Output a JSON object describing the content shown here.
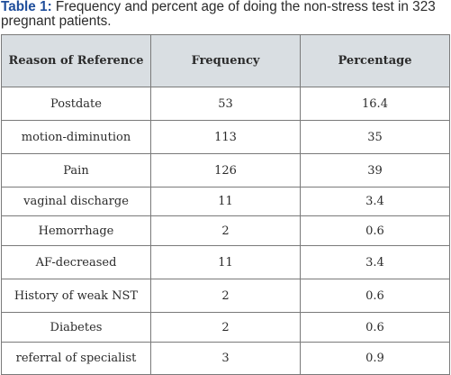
{
  "caption": {
    "label": "Table 1:",
    "text": " Frequency and percent age of doing the non-stress test in 323 pregnant patients."
  },
  "table": {
    "headers": [
      "Reason of Reference",
      "Frequency",
      "Percentage"
    ],
    "rows": [
      [
        "Postdate",
        "53",
        "16.4"
      ],
      [
        "motion-diminution",
        "113",
        "35"
      ],
      [
        "Pain",
        "126",
        "39"
      ],
      [
        "vaginal discharge",
        "11",
        "3.4"
      ],
      [
        "Hemorrhage",
        "2",
        "0.6"
      ],
      [
        "AF-decreased",
        "11",
        "3.4"
      ],
      [
        "History of weak NST",
        "2",
        "0.6"
      ],
      [
        "Diabetes",
        "2",
        "0.6"
      ],
      [
        "referral of specialist",
        "3",
        "0.9"
      ]
    ]
  },
  "chart_data": {
    "type": "table",
    "title": "Frequency and percent age of doing the non-stress test in 323 pregnant patients.",
    "columns": [
      "Reason of Reference",
      "Frequency",
      "Percentage"
    ],
    "rows": [
      [
        "Postdate",
        53,
        16.4
      ],
      [
        "motion-diminution",
        113,
        35
      ],
      [
        "Pain",
        126,
        39
      ],
      [
        "vaginal discharge",
        11,
        3.4
      ],
      [
        "Hemorrhage",
        2,
        0.6
      ],
      [
        "AF-decreased",
        11,
        3.4
      ],
      [
        "History of weak NST",
        2,
        0.6
      ],
      [
        "Diabetes",
        2,
        0.6
      ],
      [
        "referral of specialist",
        3,
        0.9
      ]
    ]
  }
}
